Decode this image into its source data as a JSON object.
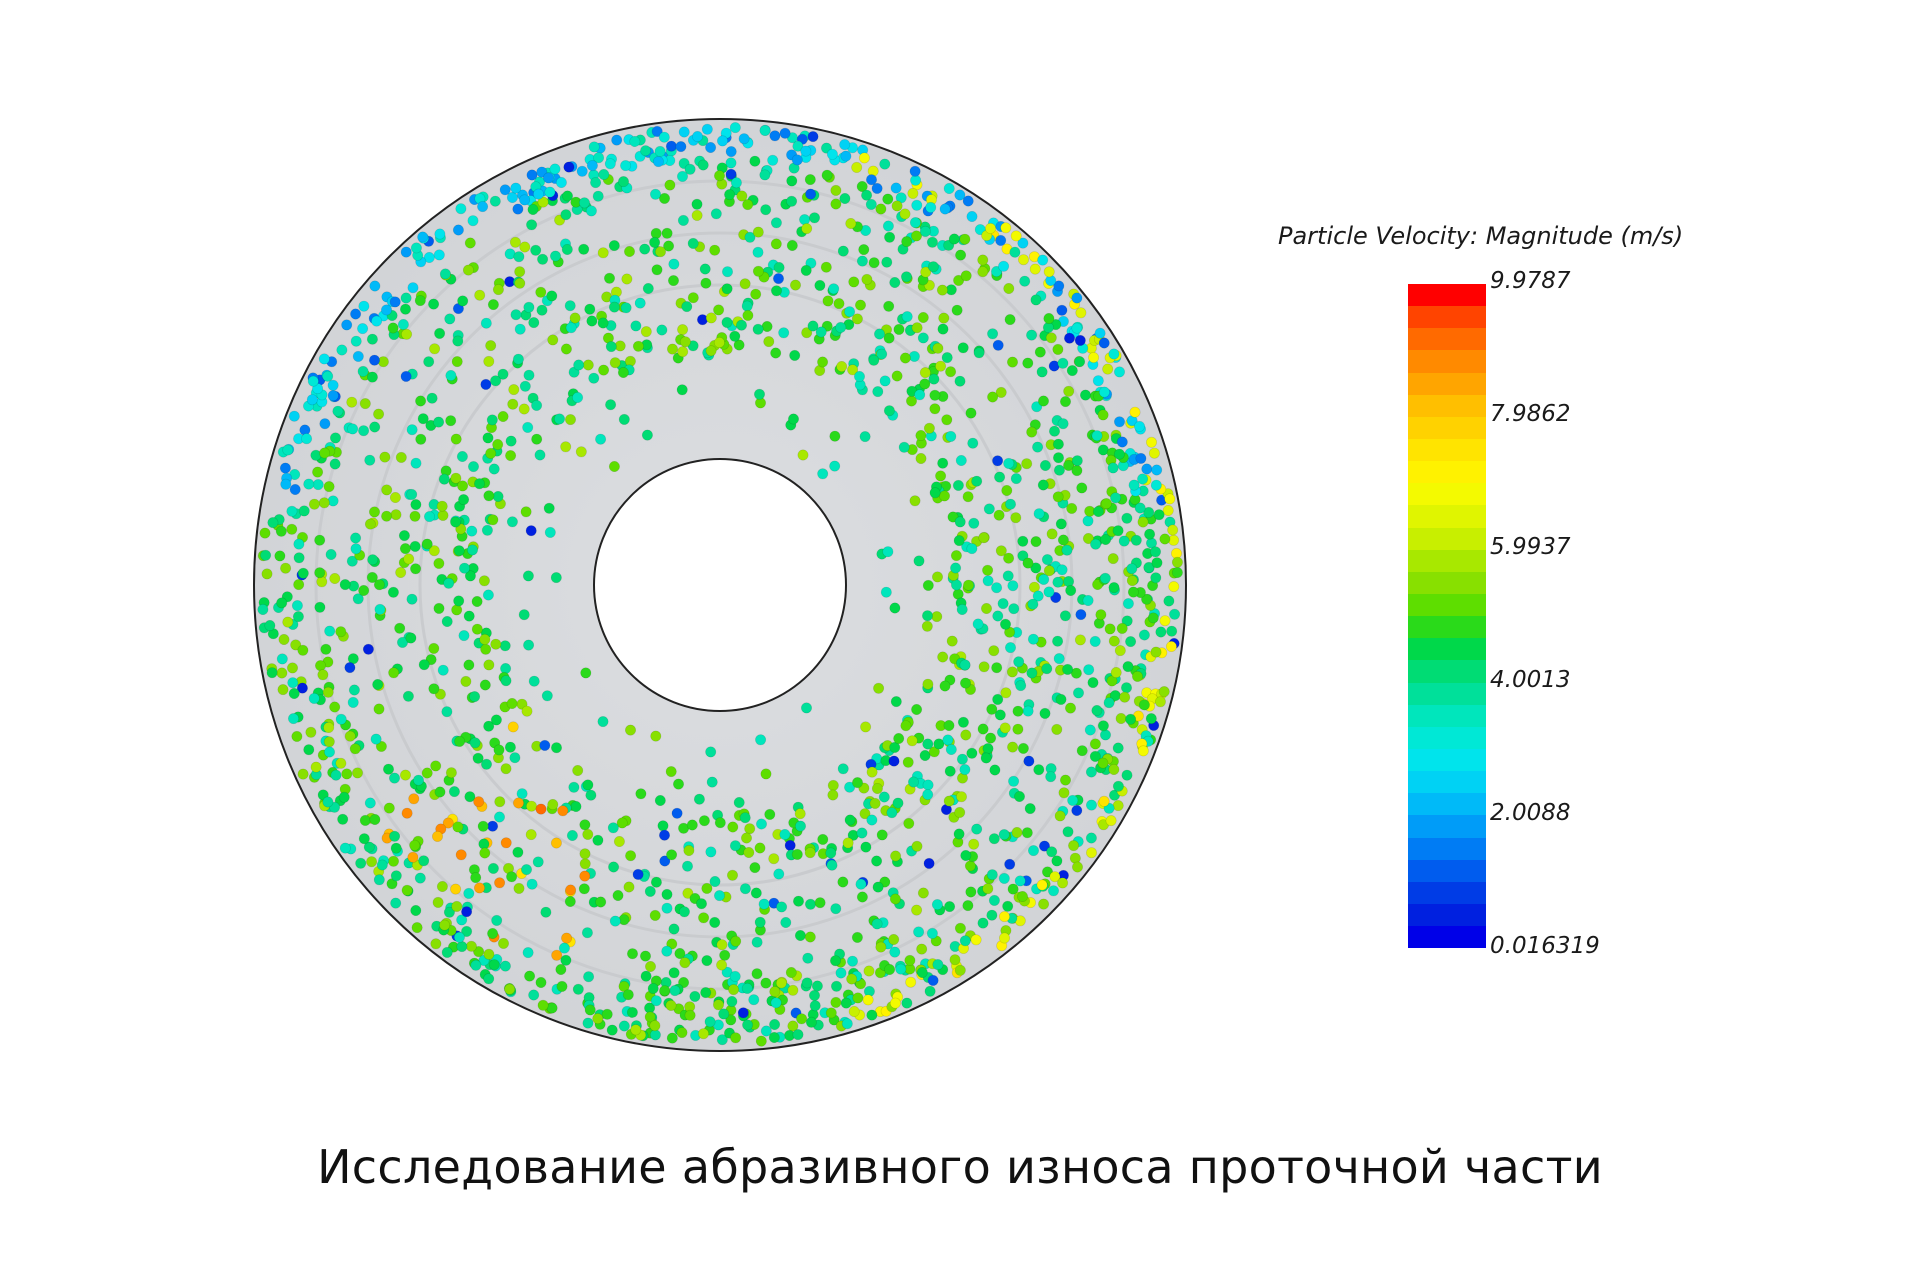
{
  "legend": {
    "title": "Particle Velocity: Magnitude (m/s)",
    "ticks": [
      "9.9787",
      "7.9862",
      "5.9937",
      "4.0013",
      "2.0088",
      "0.016319"
    ],
    "range": [
      0.016319,
      9.9787
    ],
    "colors": [
      "#ff0000",
      "#ff4400",
      "#ff6a00",
      "#ff8a00",
      "#ffa500",
      "#ffbf00",
      "#ffd200",
      "#ffe400",
      "#fff200",
      "#f4fa00",
      "#e0f500",
      "#c8ef00",
      "#a8e800",
      "#88e000",
      "#5ede00",
      "#2ada1a",
      "#00d84a",
      "#00dc74",
      "#00e09a",
      "#00e6bc",
      "#00e8d6",
      "#00e4ec",
      "#00d2f4",
      "#00baf8",
      "#009cf8",
      "#007cf4",
      "#005cee",
      "#003ce6",
      "#0020e0",
      "#0000e8"
    ]
  },
  "figure": {
    "disc_color": "#d6d8db",
    "hole_color": "#ffffff",
    "outline_color": "#222222",
    "particle_count_dense": "many"
  },
  "caption": "Исследование абразивного износа проточной части"
}
